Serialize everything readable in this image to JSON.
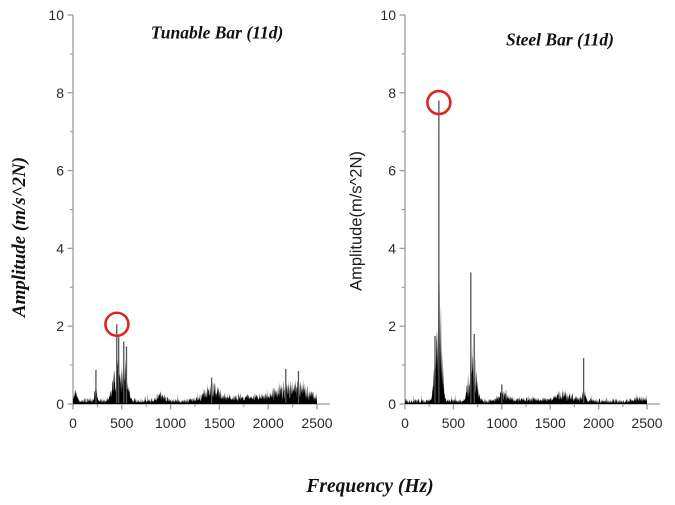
{
  "figure": {
    "xlabel": "Frequency (Hz)",
    "background_color": "#ffffff"
  },
  "chart_data": [
    {
      "type": "line",
      "title": "Tunable Bar (11d)",
      "ylabel": "Amplitude (m/s^2N)",
      "xlabel": "Frequency (Hz)",
      "xlim": [
        0,
        2500
      ],
      "ylim": [
        0,
        10
      ],
      "xticks": [
        0,
        500,
        1000,
        1500,
        2000,
        2500
      ],
      "yticks": [
        0,
        2,
        4,
        6,
        8,
        10
      ],
      "x_minor_step": 250,
      "y_minor_step": 1,
      "grid": false,
      "series_color": "#000000",
      "axis_color": "#9b9b9b",
      "tick_label_color": "#2a2a2a",
      "noise_floor": 0.13,
      "bands": [
        {
          "f": 20,
          "a": 0.35,
          "w": 18
        },
        {
          "f": 235,
          "a": 0.5,
          "w": 12
        },
        {
          "f": 465,
          "a": 1.25,
          "w": 48
        },
        {
          "f": 540,
          "a": 0.9,
          "w": 25
        },
        {
          "f": 900,
          "a": 0.22,
          "w": 40
        },
        {
          "f": 1420,
          "a": 0.5,
          "w": 80
        },
        {
          "f": 1750,
          "a": 0.16,
          "w": 160
        },
        {
          "f": 2250,
          "a": 0.55,
          "w": 170
        }
      ],
      "spikes": [
        [
          235,
          0.88
        ],
        [
          448,
          2.05
        ],
        [
          468,
          1.75
        ],
        [
          520,
          1.6
        ],
        [
          548,
          1.48
        ],
        [
          1420,
          0.68
        ],
        [
          2180,
          0.9
        ],
        [
          2310,
          0.85
        ]
      ],
      "peak_annotation": {
        "x": 450,
        "y": 2.05,
        "label": "circled resonance peak",
        "color": "#df2521"
      }
    },
    {
      "type": "line",
      "title": "Steel Bar (11d)",
      "ylabel": "Amplitude(m/s^2N)",
      "xlabel": "Frequency (Hz)",
      "xlim": [
        0,
        2500
      ],
      "ylim": [
        0,
        10
      ],
      "xticks": [
        0,
        500,
        1000,
        1500,
        2000,
        2500
      ],
      "yticks": [
        0,
        2,
        4,
        6,
        8,
        10
      ],
      "x_minor_step": 250,
      "y_minor_step": 1,
      "grid": false,
      "series_color": "#000000",
      "axis_color": "#9b9b9b",
      "tick_label_color": "#2a2a2a",
      "noise_floor": 0.11,
      "bands": [
        {
          "f": 350,
          "a": 4.2,
          "w": 26
        },
        {
          "f": 310,
          "a": 1.1,
          "w": 15
        },
        {
          "f": 700,
          "a": 1.55,
          "w": 38
        },
        {
          "f": 1020,
          "a": 0.32,
          "w": 55
        },
        {
          "f": 1300,
          "a": 0.1,
          "w": 90
        },
        {
          "f": 1650,
          "a": 0.28,
          "w": 110
        },
        {
          "f": 1850,
          "a": 0.3,
          "w": 14
        },
        {
          "f": 2430,
          "a": 0.1,
          "w": 70
        }
      ],
      "spikes": [
        [
          350,
          7.8
        ],
        [
          310,
          1.75
        ],
        [
          680,
          3.38
        ],
        [
          715,
          1.8
        ],
        [
          1000,
          0.5
        ],
        [
          1845,
          1.18
        ]
      ],
      "peak_annotation": {
        "x": 350,
        "y": 7.75,
        "label": "circled resonance peak",
        "color": "#df2521"
      }
    }
  ]
}
